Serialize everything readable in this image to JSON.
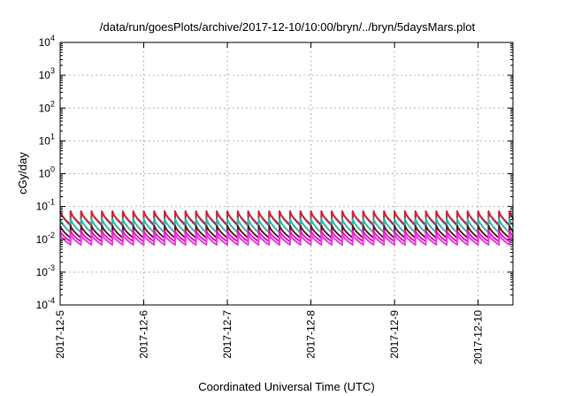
{
  "chart_data": {
    "type": "line",
    "title": "/data/run/goesPlots/archive/2017-12-10/10:00/bryn/../bryn/5daysMars.plot",
    "xlabel": "Coordinated Universal Time (UTC)",
    "ylabel": "cGy/day",
    "x_range": [
      "2017-12-05T00:00",
      "2017-12-10T10:00"
    ],
    "y_scale": "log",
    "ylim": [
      0.0001,
      10000
    ],
    "grid": true,
    "x_ticks": [
      "2017-12-5",
      "2017-12-6",
      "2017-12-7",
      "2017-12-8",
      "2017-12-9",
      "2017-12-10"
    ],
    "y_ticks": [
      {
        "base": "10",
        "exp": "4"
      },
      {
        "base": "10",
        "exp": "3"
      },
      {
        "base": "10",
        "exp": "2"
      },
      {
        "base": "10",
        "exp": "1"
      },
      {
        "base": "10",
        "exp": "0"
      },
      {
        "base": "10",
        "exp": "-1"
      },
      {
        "base": "10",
        "exp": "-2"
      },
      {
        "base": "10",
        "exp": "-3"
      },
      {
        "base": "10",
        "exp": "-4"
      }
    ],
    "y_tick_values": [
      10000,
      1000,
      100,
      10,
      1,
      0.1,
      0.01,
      0.001,
      0.0001
    ],
    "cycle_hours": 3,
    "series": [
      {
        "color": "#2a6bd6",
        "peak": 0.072,
        "trough": 0.026
      },
      {
        "color": "#d02830",
        "peak": 0.07,
        "trough": 0.028
      },
      {
        "color": "#2fb8b0",
        "peak": 0.042,
        "trough": 0.016
      },
      {
        "color": "#6a1a1a",
        "peak": 0.026,
        "trough": 0.011
      },
      {
        "color": "#d91ec8",
        "peak": 0.018,
        "trough": 0.0085
      },
      {
        "color": "#f03ae0",
        "peak": 0.014,
        "trough": 0.0068
      }
    ]
  }
}
